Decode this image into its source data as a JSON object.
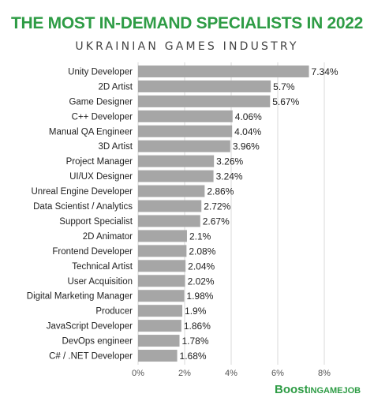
{
  "header": {
    "title": "THE MOST IN-DEMAND SPECIALISTS IN 2022",
    "subtitle": "UKRAINIAN GAMES INDUSTRY"
  },
  "logo": {
    "part1": "Boost",
    "part2": "INGAMEJOB"
  },
  "colors": {
    "title": "#2e9c45",
    "bar": "#a6a6a6",
    "text": "#222222",
    "grid": "#d9d9d9"
  },
  "chart_data": {
    "type": "bar",
    "orientation": "horizontal",
    "categories": [
      "Unity Developer",
      "2D Artist",
      "Game Designer",
      "C++ Developer",
      "Manual QA Engineer",
      "3D Artist",
      "Project Manager",
      "UI/UX Designer",
      "Unreal Engine Developer",
      "Data Scientist / Analytics",
      "Support Specialist",
      "2D Animator",
      "Frontend Developer",
      "Technical Artist",
      "User Acquisition",
      "Digital Marketing Manager",
      "Producer",
      "JavaScript Developer",
      "DevOps engineer",
      "C# / .NET Developer"
    ],
    "values": [
      7.34,
      5.7,
      5.67,
      4.06,
      4.04,
      3.96,
      3.26,
      3.24,
      2.86,
      2.72,
      2.67,
      2.1,
      2.08,
      2.04,
      2.02,
      1.98,
      1.9,
      1.86,
      1.78,
      1.68
    ],
    "value_labels": [
      "7.34%",
      "5.7%",
      "5.67%",
      "4.06%",
      "4.04%",
      "3.96%",
      "3.26%",
      "3.24%",
      "2.86%",
      "2.72%",
      "2.67%",
      "2.1%",
      "2.08%",
      "2.04%",
      "2.02%",
      "1.98%",
      "1.9%",
      "1.86%",
      "1.78%",
      "1.68%"
    ],
    "xticks": [
      "0%",
      "2%",
      "4%",
      "6%",
      "8%"
    ],
    "xlim": [
      0,
      8
    ],
    "grid": true,
    "title": "THE MOST IN-DEMAND SPECIALISTS IN 2022",
    "subtitle": "UKRAINIAN GAMES INDUSTRY"
  }
}
